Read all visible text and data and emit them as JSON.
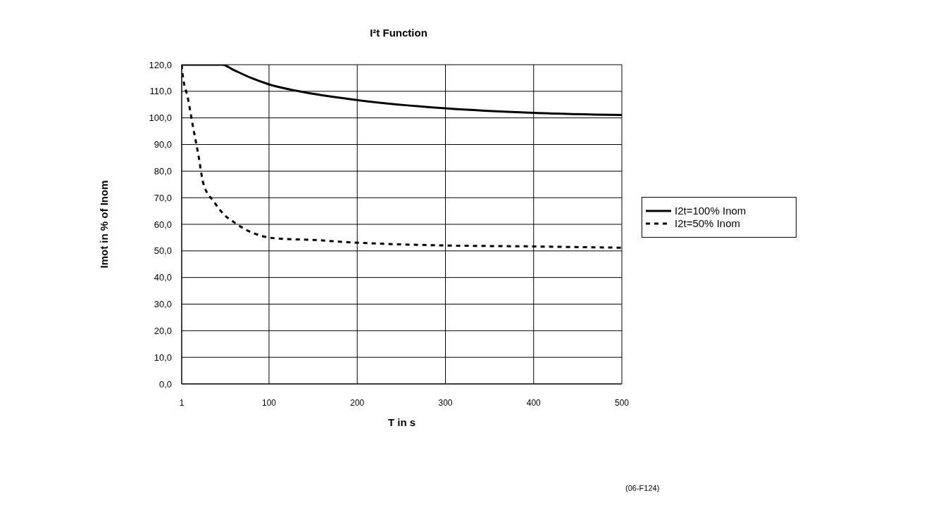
{
  "chart_data": {
    "type": "line",
    "title": "I²t Function",
    "xlabel": "T in s",
    "ylabel": "Imot in % of Inom",
    "xlim": [
      1,
      500
    ],
    "xticks": [
      1,
      100,
      200,
      300,
      400,
      500
    ],
    "ylim": [
      0,
      120
    ],
    "yticks": [
      {
        "value": 0,
        "label": "0,0"
      },
      {
        "value": 10,
        "label": "10,0"
      },
      {
        "value": 20,
        "label": "20,0"
      },
      {
        "value": 30,
        "label": "30,0"
      },
      {
        "value": 40,
        "label": "40,0"
      },
      {
        "value": 50,
        "label": "50,0"
      },
      {
        "value": 60,
        "label": "60,0"
      },
      {
        "value": 70,
        "label": "70,0"
      },
      {
        "value": 80,
        "label": "80,0"
      },
      {
        "value": 90,
        "label": "90,0"
      },
      {
        "value": 100,
        "label": "100,0"
      },
      {
        "value": 110,
        "label": "110,0"
      },
      {
        "value": 120,
        "label": "120,0"
      }
    ],
    "grid": true,
    "legend": "right",
    "marker": "none",
    "annotations": [
      "(06-F124)"
    ],
    "series": [
      {
        "name": "I2t=100% Inom",
        "color": "#000000",
        "line_style": "solid",
        "x": [
          1,
          47,
          60,
          80,
          100,
          134,
          200,
          300,
          400,
          500
        ],
        "values": [
          120,
          120,
          118,
          115,
          112.6,
          110,
          106.7,
          103.6,
          101.9,
          101.1
        ]
      },
      {
        "name": "I2t=50% Inom",
        "color": "#000000",
        "line_style": "dashed",
        "x": [
          1,
          1.6,
          8.3,
          14,
          19.9,
          25.5,
          38,
          48,
          62,
          76,
          92,
          108,
          152,
          188,
          291,
          394,
          500
        ],
        "values": [
          120,
          117.7,
          107,
          96.4,
          86.1,
          75.4,
          68.3,
          64,
          60.4,
          57.6,
          55.6,
          54.7,
          54.1,
          53.3,
          52.1,
          51.7,
          51.2
        ]
      }
    ]
  }
}
